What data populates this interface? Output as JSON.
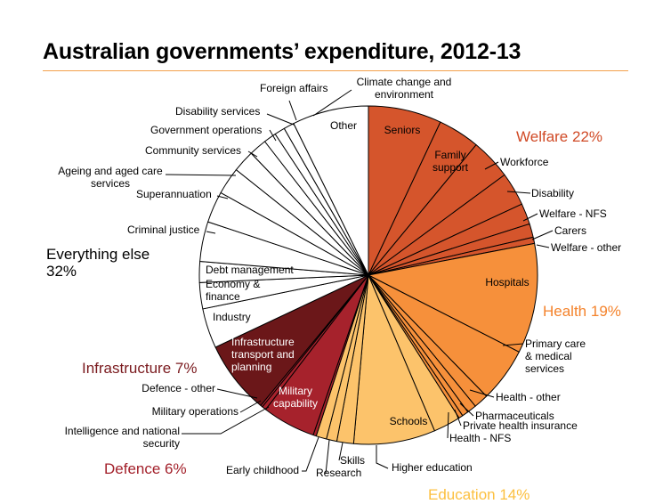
{
  "title": "Australian governments’ expenditure, 2012-13",
  "chart_data": {
    "type": "pie",
    "title": "Australian governments’ expenditure, 2012-13",
    "unit": "percent of total expenditure",
    "groups": [
      {
        "key": "welfare",
        "label": "Welfare 22%",
        "value": 22,
        "color": "#c8391f",
        "slices": [
          {
            "key": "seniors",
            "label": "Seniors",
            "value": 7.0,
            "color": "#d5552c"
          },
          {
            "key": "family-support",
            "label": "Family support",
            "value": 4.0,
            "color": "#d5552c"
          },
          {
            "key": "workforce",
            "label": "Workforce",
            "value": 3.9,
            "color": "#d5552c"
          },
          {
            "key": "disability",
            "label": "Disability",
            "value": 3.2,
            "color": "#d5552c"
          },
          {
            "key": "welfare-nfs",
            "label": "Welfare - NFS",
            "value": 2.0,
            "color": "#d5552c"
          },
          {
            "key": "carers",
            "label": "Carers",
            "value": 1.3,
            "color": "#d5552c"
          },
          {
            "key": "welfare-other",
            "label": "Welfare - other",
            "value": 0.6,
            "color": "#d5552c"
          }
        ]
      },
      {
        "key": "health",
        "label": "Health 19%",
        "value": 19,
        "color": "#f4832c",
        "slices": [
          {
            "key": "hospitals",
            "label": "Hospitals",
            "value": 10.5,
            "color": "#f6903b"
          },
          {
            "key": "primary-care",
            "label": "Primary care & medical services",
            "value": 5.2,
            "color": "#f6903b"
          },
          {
            "key": "health-other",
            "label": "Health - other",
            "value": 1.4,
            "color": "#f6903b"
          },
          {
            "key": "pharmaceuticals",
            "label": "Pharmaceuticals",
            "value": 0.9,
            "color": "#f6903b"
          },
          {
            "key": "private-health-insurance",
            "label": "Private health insurance",
            "value": 0.6,
            "color": "#f6903b"
          },
          {
            "key": "health-nfs",
            "label": "Health - NFS",
            "value": 0.4,
            "color": "#f6903b"
          }
        ]
      },
      {
        "key": "education",
        "label": "Education 14%",
        "value": 14,
        "color": "#fbb43c",
        "slices": [
          {
            "key": "higher-education",
            "label": "Higher education",
            "value": 2.6,
            "color": "#fcc36b"
          },
          {
            "key": "schools",
            "label": "Schools",
            "value": 7.8,
            "color": "#fcc36b"
          },
          {
            "key": "skills",
            "label": "Skills",
            "value": 1.6,
            "color": "#fcc36b"
          },
          {
            "key": "research",
            "label": "Research",
            "value": 1.0,
            "color": "#fcc36b"
          },
          {
            "key": "early-childhood",
            "label": "Early childhood",
            "value": 1.0,
            "color": "#fcc36b"
          }
        ]
      },
      {
        "key": "defence",
        "label": "Defence 6%",
        "value": 6,
        "color": "#a3212b",
        "slices": [
          {
            "key": "intelligence",
            "label": "Intelligence and national security",
            "value": 0.3,
            "color": "#a6222c"
          },
          {
            "key": "military-capability",
            "label": "Military capability",
            "value": 5.1,
            "color": "#a6222c"
          },
          {
            "key": "military-operations",
            "label": "Military operations",
            "value": 0.4,
            "color": "#a6222c"
          },
          {
            "key": "defence-other",
            "label": "Defence - other",
            "value": 0.2,
            "color": "#a6222c"
          }
        ]
      },
      {
        "key": "infrastructure",
        "label": "Infrastructure 7%",
        "value": 7,
        "color": "#6f1a1d",
        "slices": [
          {
            "key": "infrastructure-transport",
            "label": "Infrastructure transport and planning",
            "value": 7.0,
            "color": "#6b1719"
          }
        ]
      },
      {
        "key": "everything-else",
        "label": "Everything else 32%",
        "value": 32,
        "color": "#000000",
        "slices": [
          {
            "key": "industry",
            "label": "Industry",
            "value": 3.8,
            "color": "#ffffff"
          },
          {
            "key": "economy-finance",
            "label": "Economy & finance",
            "value": 2.5,
            "color": "#ffffff"
          },
          {
            "key": "debt-management",
            "label": "Debt management",
            "value": 2.0,
            "color": "#ffffff"
          },
          {
            "key": "criminal-justice",
            "label": "Criminal justice",
            "value": 3.8,
            "color": "#ffffff"
          },
          {
            "key": "superannuation",
            "label": "Superannuation",
            "value": 3.0,
            "color": "#ffffff"
          },
          {
            "key": "ageing",
            "label": "Ageing and aged care services",
            "value": 2.6,
            "color": "#ffffff"
          },
          {
            "key": "community-services",
            "label": "Community services",
            "value": 2.1,
            "color": "#ffffff"
          },
          {
            "key": "government-operations",
            "label": "Government operations",
            "value": 1.7,
            "color": "#ffffff"
          },
          {
            "key": "disability-services",
            "label": "Disability services",
            "value": 1.2,
            "color": "#ffffff"
          },
          {
            "key": "foreign-affairs",
            "label": "Foreign affairs",
            "value": 1.0,
            "color": "#ffffff"
          },
          {
            "key": "climate-change",
            "label": "Climate change and environment",
            "value": 1.0,
            "color": "#ffffff"
          },
          {
            "key": "other",
            "label": "Other",
            "value": 7.3,
            "color": "#ffffff"
          }
        ]
      }
    ]
  }
}
